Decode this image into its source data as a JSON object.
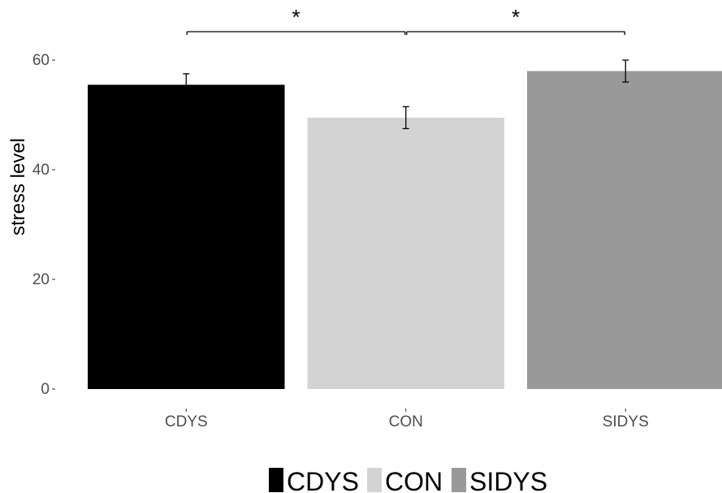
{
  "chart_data": {
    "type": "bar",
    "categories": [
      "CDYS",
      "CON",
      "SIDYS"
    ],
    "values": [
      55.5,
      49.5,
      58.0
    ],
    "errors": [
      2.0,
      2.0,
      2.0
    ],
    "colors": [
      "#000000",
      "#d3d3d3",
      "#999999"
    ],
    "ylabel": "stress level",
    "xlabel": "",
    "ylim": [
      0,
      60
    ],
    "yticks": [
      0,
      20,
      40,
      60
    ],
    "grid": false,
    "legend": {
      "position": "bottom",
      "entries": [
        "CDYS",
        "CON",
        "SIDYS"
      ]
    },
    "significance": [
      {
        "from": "CDYS",
        "to": "CON",
        "label": "*"
      },
      {
        "from": "CON",
        "to": "SIDYS",
        "label": "*"
      }
    ]
  }
}
